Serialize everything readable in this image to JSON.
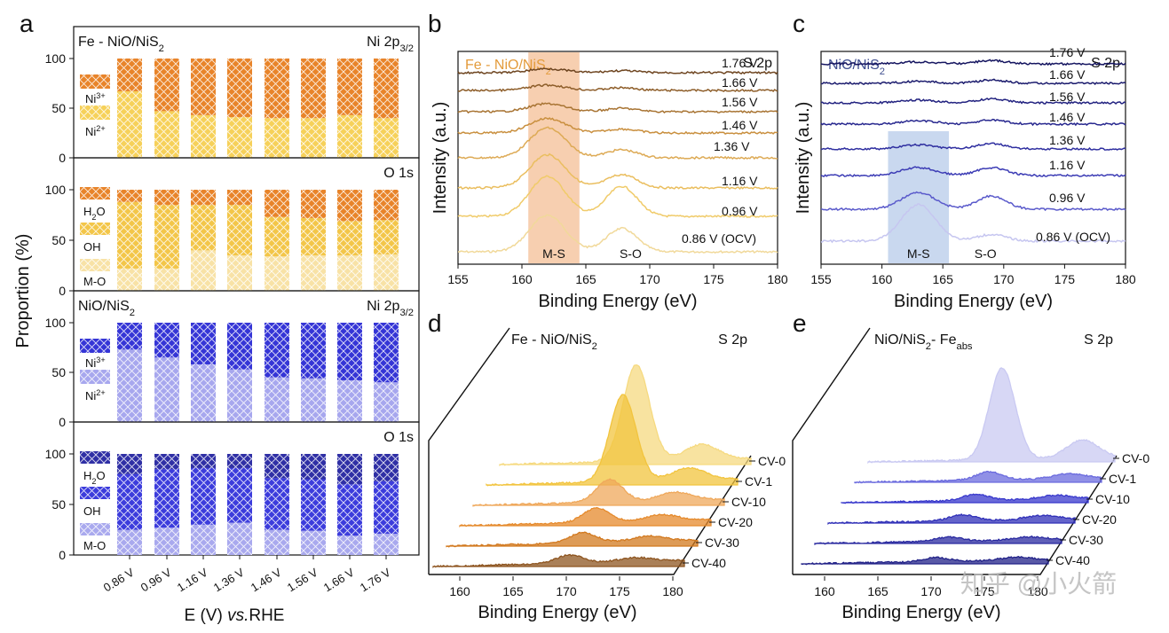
{
  "panel_letters": [
    "a",
    "b",
    "c",
    "d",
    "e"
  ],
  "watermark": "知乎 @小火箭",
  "colors": {
    "ni3_orange": "#E8842A",
    "ni2_yellow": "#F6D15A",
    "h2o_orange": "#E8842A",
    "oh_yellow": "#F3C649",
    "mo_light": "#F8E2A6",
    "ni3_blue": "#3535D6",
    "ni2_lightblue": "#A7A7EE",
    "h2o_navy": "#2F2FA5",
    "oh_blue": "#3C3CDC",
    "mo_lightblue": "#A9A9EE",
    "fe_title": "#E39B3B",
    "nio_title": "#3F4E8F"
  },
  "chart_data": [
    {
      "id": "a",
      "type": "bar",
      "stacked": true,
      "ylabel": "Proportion (%)",
      "xlabel_prefix": "E (V) ",
      "xlabel_italic": "vs.",
      "xlabel_suffix": "RHE",
      "categories": [
        "0.86 V",
        "0.96 V",
        "1.16 V",
        "1.36 V",
        "1.46 V",
        "1.56 V",
        "1.66 V",
        "1.76 V"
      ],
      "ylim": [
        0,
        100
      ],
      "yticks": [
        "0",
        "50",
        "100"
      ],
      "subplots": [
        {
          "title": "Fe - NiO/NiS",
          "title_sub": "2",
          "label": "Ni 2p",
          "label_sub": "3/2",
          "series": [
            {
              "name": "Ni2+",
              "values": [
                67,
                47,
                43,
                41,
                40,
                40,
                43,
                40
              ]
            },
            {
              "name": "Ni3+",
              "values": [
                33,
                53,
                57,
                59,
                60,
                60,
                57,
                60
              ]
            }
          ],
          "legend": [
            {
              "base": "Ni",
              "sup": "3+"
            },
            {
              "base": "Ni",
              "sup": "2+"
            }
          ]
        },
        {
          "title": "",
          "title_sub": "",
          "label": "O 1s",
          "label_sub": "",
          "series": [
            {
              "name": "M-O",
              "values": [
                22,
                22,
                40,
                35,
                34,
                35,
                35,
                36
              ]
            },
            {
              "name": "OH",
              "values": [
                66,
                63,
                45,
                50,
                39,
                37,
                34,
                34
              ]
            },
            {
              "name": "H2O",
              "values": [
                12,
                15,
                15,
                15,
                27,
                28,
                31,
                30
              ]
            }
          ],
          "legend": [
            {
              "base": "H",
              "sub": "2",
              "rest": "O"
            },
            {
              "base": "OH"
            },
            {
              "base": "M-O"
            }
          ]
        },
        {
          "title": "NiO/NiS",
          "title_sub": "2",
          "label": "Ni 2p",
          "label_sub": "3/2",
          "series": [
            {
              "name": "Ni2+",
              "values": [
                73,
                65,
                58,
                53,
                45,
                44,
                42,
                40
              ]
            },
            {
              "name": "Ni3+",
              "values": [
                27,
                35,
                42,
                47,
                55,
                56,
                58,
                60
              ]
            }
          ],
          "legend": [
            {
              "base": "Ni",
              "sup": "3+"
            },
            {
              "base": "Ni",
              "sup": "2+"
            }
          ]
        },
        {
          "title": "",
          "title_sub": "",
          "label": "O 1s",
          "label_sub": "",
          "series": [
            {
              "name": "M-O",
              "values": [
                25,
                27,
                30,
                32,
                25,
                24,
                19,
                21
              ]
            },
            {
              "name": "OH",
              "values": [
                55,
                58,
                56,
                54,
                51,
                51,
                51,
                52
              ]
            },
            {
              "name": "H2O",
              "values": [
                20,
                15,
                14,
                14,
                24,
                25,
                30,
                27
              ]
            }
          ],
          "legend": [
            {
              "base": "H",
              "sub": "2",
              "rest": "O"
            },
            {
              "base": "OH"
            },
            {
              "base": "M-O"
            }
          ]
        }
      ]
    },
    {
      "id": "b",
      "type": "line",
      "title": "Fe - NiO/NiS",
      "title_sub": "2",
      "label": "S 2p",
      "xlabel": "Binding Energy (eV)",
      "ylabel": "Intensity (a.u.)",
      "xlim": [
        155,
        180
      ],
      "xticks": [
        "155",
        "160",
        "165",
        "170",
        "175",
        "180"
      ],
      "highlight": {
        "from": 160.5,
        "to": 164.5,
        "label": "M-S"
      },
      "peak2_label": "S-O",
      "series": [
        {
          "name": "0.86 V (OCV)",
          "ms": 55,
          "so": 35,
          "color": "#F1D99A"
        },
        {
          "name": "0.96 V",
          "ms": 60,
          "so": 45,
          "color": "#F0CB6A"
        },
        {
          "name": "1.16 V",
          "ms": 50,
          "so": 20,
          "color": "#EABE5F"
        },
        {
          "name": "1.36 V",
          "ms": 45,
          "so": 12,
          "color": "#DDAA55"
        },
        {
          "name": "1.46 V",
          "ms": 22,
          "so": 6,
          "color": "#C98F3E"
        },
        {
          "name": "1.56 V",
          "ms": 12,
          "so": 5,
          "color": "#A87433"
        },
        {
          "name": "1.66 V",
          "ms": 8,
          "so": 4,
          "color": "#8E5E2A"
        },
        {
          "name": "1.76 V",
          "ms": 6,
          "so": 3,
          "color": "#6E4520"
        }
      ]
    },
    {
      "id": "c",
      "type": "line",
      "title": "NiO/NiS",
      "title_sub": "2",
      "label": "S 2p",
      "xlabel": "Binding Energy (eV)",
      "ylabel": "Intensity (a.u.)",
      "xlim": [
        155,
        180
      ],
      "xticks": [
        "155",
        "160",
        "165",
        "170",
        "175",
        "180"
      ],
      "highlight": {
        "from": 160.5,
        "to": 165.5,
        "label": "M-S"
      },
      "peak2_label": "S-O",
      "series": [
        {
          "name": "0.86 V (OCV)",
          "ms": 55,
          "so": 10,
          "color": "#C6C6F0"
        },
        {
          "name": "0.96 V",
          "ms": 25,
          "so": 20,
          "color": "#5A5ACB"
        },
        {
          "name": "1.16 V",
          "ms": 12,
          "so": 12,
          "color": "#3C3CB5"
        },
        {
          "name": "1.36 V",
          "ms": 6,
          "so": 8,
          "color": "#2F2FA0"
        },
        {
          "name": "1.46 V",
          "ms": 5,
          "so": 6,
          "color": "#28288F"
        },
        {
          "name": "1.56 V",
          "ms": 4,
          "so": 6,
          "color": "#222280"
        },
        {
          "name": "1.66 V",
          "ms": 3,
          "so": 5,
          "color": "#1C1C6E"
        },
        {
          "name": "1.76 V",
          "ms": 3,
          "so": 5,
          "color": "#151560"
        }
      ]
    },
    {
      "id": "d",
      "type": "area",
      "title": "Fe - NiO/NiS",
      "title_sub": "2",
      "label": "S 2p",
      "xlabel": "Binding Energy (eV)",
      "xlim": [
        157,
        180
      ],
      "xticks": [
        "160",
        "165",
        "170",
        "175",
        "180"
      ],
      "series": [
        {
          "name": "CV-0",
          "ms": 95,
          "so": 15,
          "color": "#F6DA80"
        },
        {
          "name": "CV-1",
          "ms": 85,
          "so": 12,
          "color": "#F2C43E"
        },
        {
          "name": "CV-10",
          "ms": 22,
          "so": 8,
          "color": "#EFA85B"
        },
        {
          "name": "CV-20",
          "ms": 14,
          "so": 6,
          "color": "#E58A2C"
        },
        {
          "name": "CV-30",
          "ms": 10,
          "so": 5,
          "color": "#D2791F"
        },
        {
          "name": "CV-40",
          "ms": 8,
          "so": 4,
          "color": "#8E5520"
        }
      ]
    },
    {
      "id": "e",
      "type": "area",
      "title": "NiO/NiS",
      "title_sub": "2",
      "title_mid": "- Fe",
      "title_sub2": "abs",
      "label": "S 2p",
      "xlabel": "Binding Energy (eV)",
      "xlim": [
        157,
        180
      ],
      "xticks": [
        "160",
        "165",
        "170",
        "175",
        "180"
      ],
      "series": [
        {
          "name": "CV-0",
          "ms": 90,
          "so": 18,
          "color": "#C9C9F2"
        },
        {
          "name": "CV-1",
          "ms": 8,
          "so": 5,
          "color": "#6B6BDE"
        },
        {
          "name": "CV-10",
          "ms": 6,
          "so": 4,
          "color": "#3838CC"
        },
        {
          "name": "CV-20",
          "ms": 6,
          "so": 4,
          "color": "#3030B8"
        },
        {
          "name": "CV-30",
          "ms": 4,
          "so": 3,
          "color": "#2A2AA0"
        },
        {
          "name": "CV-40",
          "ms": 4,
          "so": 3,
          "color": "#222288"
        }
      ]
    }
  ]
}
